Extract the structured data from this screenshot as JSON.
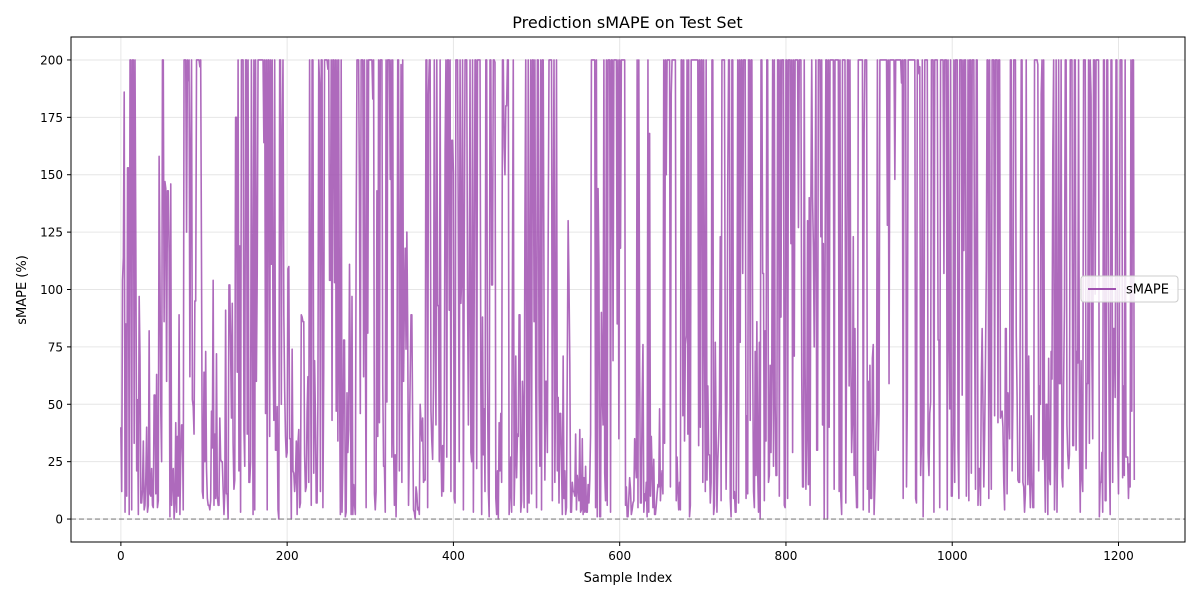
{
  "chart_data": {
    "type": "line",
    "title": "Prediction sMAPE on Test Set",
    "xlabel": "Sample Index",
    "ylabel": "sMAPE (%)",
    "xlim": [
      -60,
      1280
    ],
    "ylim": [
      -10,
      210
    ],
    "xticks": [
      0,
      200,
      400,
      600,
      800,
      1000,
      1200
    ],
    "yticks": [
      0,
      25,
      50,
      75,
      100,
      125,
      150,
      175,
      200
    ],
    "grid": true,
    "legend_position": "center-right",
    "reference_line": {
      "y": 0,
      "style": "dashed",
      "color": "#808080"
    },
    "series": [
      {
        "name": "sMAPE",
        "color": "#a050b0",
        "x_start": 0,
        "x_step": 1,
        "n_points": 1220,
        "profile": [
          40,
          12,
          104,
          114,
          186,
          3,
          85,
          10,
          153,
          2,
          200,
          200,
          4,
          200,
          200,
          33,
          200,
          118,
          21,
          52,
          2,
          97,
          71,
          7,
          13,
          34,
          4,
          6,
          18,
          40,
          3,
          6,
          82,
          11,
          10,
          22,
          6,
          5,
          54,
          11,
          63,
          5,
          8,
          158,
          108,
          47,
          25,
          200,
          200,
          86,
          147,
          144,
          60,
          143,
          116,
          1,
          146,
          6,
          18,
          22,
          0,
          7,
          42,
          3,
          36,
          10,
          89,
          2,
          26,
          41,
          4,
          200,
          200,
          200,
          125,
          200,
          191,
          200,
          62,
          158,
          200,
          52,
          49,
          37,
          95,
          200,
          200,
          200,
          200,
          197,
          200,
          110,
          12,
          9,
          64,
          25,
          73,
          22,
          9,
          6,
          4,
          8,
          47,
          31,
          104,
          6,
          37,
          9,
          72,
          10,
          6,
          6,
          44,
          26,
          25,
          13,
          2,
          12,
          91,
          11,
          11,
          0,
          102,
          102,
          74,
          44,
          94,
          33,
          13,
          17,
          175,
          64,
          200,
          21,
          119,
          3,
          200,
          200,
          200,
          39,
          23,
          200,
          200,
          37,
          200,
          16,
          25,
          200,
          92,
          2,
          200,
          4,
          200,
          60,
          107,
          200,
          200,
          200,
          200,
          200,
          200,
          164,
          200,
          46,
          200,
          4,
          200,
          200,
          36,
          200,
          111,
          200,
          73,
          43,
          200,
          30,
          49,
          4,
          0,
          200,
          200,
          50,
          165,
          200,
          89,
          56,
          36,
          27,
          29,
          109,
          110,
          35,
          0,
          74,
          21,
          20,
          12,
          18,
          34,
          2,
          33,
          39,
          5,
          7,
          89,
          88,
          86,
          28,
          12,
          14,
          47,
          62,
          16,
          200,
          90,
          6,
          200,
          200,
          20,
          69,
          45,
          7,
          51,
          200,
          190,
          12,
          200,
          200,
          5,
          66,
          200,
          200,
          200,
          200,
          196,
          200,
          104,
          200,
          43,
          200,
          200,
          103,
          200,
          47,
          200,
          34,
          200,
          64,
          2,
          200,
          3,
          24,
          78,
          1,
          3,
          55,
          29,
          39,
          111,
          67,
          2,
          97,
          2,
          15,
          7,
          2,
          123,
          200,
          200,
          136,
          46,
          200,
          200,
          200,
          62,
          200,
          88,
          5,
          200,
          81,
          200,
          200,
          200,
          200,
          183,
          200,
          11,
          4,
          12,
          143,
          36,
          200,
          42,
          200,
          200,
          200,
          59,
          23,
          3,
          200,
          51,
          200,
          200,
          200,
          148,
          200,
          27,
          200,
          33,
          6,
          28,
          1,
          30,
          200,
          21,
          102,
          198,
          16,
          200,
          60,
          94,
          118,
          74,
          125,
          84,
          6,
          33,
          62,
          89,
          41,
          4,
          3,
          0,
          14,
          11,
          4,
          5,
          2,
          50,
          42,
          34,
          44,
          16,
          17,
          200,
          200,
          5,
          185,
          200,
          200,
          47,
          34,
          26,
          58,
          200,
          84,
          41,
          200,
          93,
          25,
          200,
          32,
          10,
          32,
          12,
          44,
          161,
          200,
          27,
          200,
          200,
          91,
          200,
          12,
          165,
          151,
          9,
          7,
          200,
          200,
          200,
          114,
          25,
          200,
          94,
          106,
          200,
          4,
          116,
          200,
          200,
          98,
          41,
          100,
          200,
          29,
          25,
          200,
          3,
          96,
          200,
          200,
          22,
          200,
          200,
          200,
          58,
          2,
          88,
          28,
          48,
          12,
          200,
          200,
          60,
          13,
          1,
          200,
          200,
          102,
          200,
          200,
          199,
          9,
          2,
          21,
          0,
          42,
          21,
          46,
          16,
          200,
          200,
          162,
          150,
          180,
          200,
          200,
          2,
          11,
          27,
          3,
          105,
          200,
          6,
          24,
          71,
          18,
          37,
          36,
          89,
          3,
          8,
          60,
          46,
          5,
          128,
          200,
          52,
          3,
          200,
          7,
          96,
          200,
          11,
          200,
          86,
          200,
          61,
          5,
          200,
          200,
          57,
          23,
          200,
          4,
          200,
          200,
          94,
          17,
          60,
          29,
          122,
          200,
          200,
          200,
          200,
          8,
          126,
          200,
          16,
          61,
          200,
          21,
          53,
          7,
          46,
          24,
          2,
          71,
          9,
          21,
          2,
          5,
          69,
          130,
          103,
          68,
          3,
          3,
          16,
          12,
          10,
          37,
          4,
          19,
          14,
          8,
          39,
          3,
          4,
          35,
          2,
          18,
          3,
          23,
          3,
          15,
          7,
          17,
          37,
          200,
          200,
          200,
          200,
          200,
          5,
          200,
          1,
          144,
          111,
          1,
          90,
          57,
          41,
          200,
          20,
          8,
          200,
          6,
          200,
          200,
          200,
          3,
          200,
          200,
          69,
          200,
          200,
          200,
          85,
          200,
          35,
          200,
          118,
          200,
          200,
          200,
          200,
          200,
          6,
          14,
          1,
          9,
          18,
          13,
          2,
          4,
          7,
          8,
          35,
          25,
          18,
          200,
          5,
          200,
          67,
          7,
          52,
          76,
          3,
          11,
          8,
          16,
          1,
          200,
          3,
          168,
          10,
          36,
          21,
          5,
          26,
          2,
          6,
          11,
          15,
          14,
          48,
          8,
          17,
          21,
          11,
          200,
          33,
          200,
          150,
          200,
          200,
          200,
          14,
          185,
          200,
          200,
          200,
          200,
          200,
          8,
          27,
          12,
          4,
          16,
          4,
          200,
          45,
          200,
          34,
          76,
          80,
          200,
          37,
          200,
          1,
          6,
          200,
          200,
          200,
          200,
          200,
          200,
          200,
          200,
          32,
          200,
          40,
          200,
          200,
          16,
          200,
          89,
          12,
          200,
          17,
          58,
          28,
          7,
          16,
          200,
          200,
          2,
          6,
          77,
          37,
          3,
          25,
          36,
          49,
          123,
          8,
          200,
          200,
          200,
          65,
          13,
          50,
          147,
          200,
          200,
          9,
          1,
          200,
          200,
          9,
          12,
          3,
          61,
          200,
          7,
          200,
          77,
          200,
          200,
          107,
          200,
          200,
          200,
          9,
          45,
          11,
          200,
          43,
          200,
          200,
          70,
          12,
          5,
          73,
          19,
          86,
          21,
          3,
          77,
          0,
          200,
          200,
          107,
          8,
          82,
          34,
          200,
          200,
          16,
          19,
          67,
          29,
          70,
          200,
          23,
          200,
          50,
          19,
          200,
          200,
          10,
          200,
          88,
          200,
          200,
          200,
          6,
          5,
          200,
          200,
          9,
          200,
          200,
          120,
          200,
          29,
          200,
          71,
          200,
          200,
          200,
          200,
          127,
          200,
          200,
          200,
          62,
          14,
          200,
          68,
          13,
          37,
          130,
          15,
          140,
          6,
          140,
          200,
          140,
          118,
          75,
          130,
          200,
          30,
          200,
          200,
          200,
          123,
          200,
          41,
          120,
          0,
          106,
          200,
          200,
          0,
          200,
          40,
          200,
          200,
          200,
          200,
          13,
          200,
          200,
          200,
          200,
          200,
          12,
          200,
          10,
          2,
          200,
          200,
          200,
          7,
          84,
          200,
          200,
          58,
          200,
          70,
          29,
          43,
          123,
          19,
          83,
          18,
          5,
          200,
          200,
          200,
          200,
          200,
          200,
          4,
          168,
          200,
          200,
          200,
          13,
          60,
          3,
          67,
          9,
          70,
          76,
          2,
          15,
          31,
          46,
          200,
          30,
          47,
          200,
          200,
          200,
          200,
          200,
          200,
          200,
          200,
          128,
          200,
          59,
          200,
          200,
          200,
          200,
          200,
          200,
          148,
          200,
          200,
          200,
          200,
          200,
          200,
          190,
          200,
          9,
          200,
          200,
          200,
          14,
          51,
          200,
          200,
          200,
          200,
          200,
          200,
          200,
          200,
          9,
          7,
          200,
          200,
          194,
          197,
          19,
          33,
          200,
          1,
          47,
          200,
          200,
          200,
          29,
          19,
          46,
          51,
          200,
          200,
          200,
          3,
          200,
          200,
          200,
          200,
          78,
          5,
          200,
          200,
          200,
          200,
          107,
          200,
          200,
          200,
          4,
          200,
          84,
          48,
          200,
          10,
          38,
          200,
          16,
          200,
          200,
          200,
          31,
          9,
          200,
          200,
          200,
          54,
          200,
          117,
          200,
          10,
          42,
          200,
          8,
          200,
          200,
          20,
          200,
          200,
          200,
          80,
          13,
          200,
          200,
          6,
          22,
          6,
          60,
          83,
          50,
          14,
          37,
          69,
          109,
          200,
          200,
          9,
          200,
          64,
          13,
          200,
          200,
          45,
          200,
          200,
          200,
          42,
          200,
          200,
          44,
          46,
          47,
          40,
          16,
          4,
          83,
          11,
          55,
          50,
          35,
          200,
          200,
          21,
          53,
          200,
          200,
          200,
          80,
          54,
          17,
          16,
          107,
          200,
          200,
          16,
          14,
          3,
          11,
          200,
          62,
          15,
          71,
          19,
          5,
          45,
          17,
          5,
          200,
          200,
          200,
          200,
          198,
          21,
          58,
          50,
          185,
          200,
          26,
          200,
          28,
          3,
          50,
          2,
          70,
          18,
          15,
          73,
          61,
          160,
          200,
          4,
          26,
          200,
          3,
          43,
          200,
          59,
          200,
          18,
          14,
          59,
          93,
          200,
          200,
          41,
          28,
          22,
          28,
          200,
          200,
          200,
          32,
          200,
          200,
          30,
          73,
          68,
          200,
          34,
          3,
          69,
          18,
          12,
          200,
          200,
          200,
          22,
          59,
          200,
          33,
          200,
          184,
          72,
          35,
          200,
          200,
          98,
          200,
          200,
          200,
          200,
          1,
          16,
          29,
          3,
          200,
          200,
          8,
          8,
          200,
          200,
          92,
          26,
          2,
          200,
          200,
          16,
          83,
          53,
          200,
          200,
          37,
          11,
          80,
          200,
          200,
          200,
          18,
          58,
          19,
          200,
          27,
          27,
          9,
          24,
          14,
          200,
          47,
          200,
          200,
          17
        ]
      }
    ]
  }
}
